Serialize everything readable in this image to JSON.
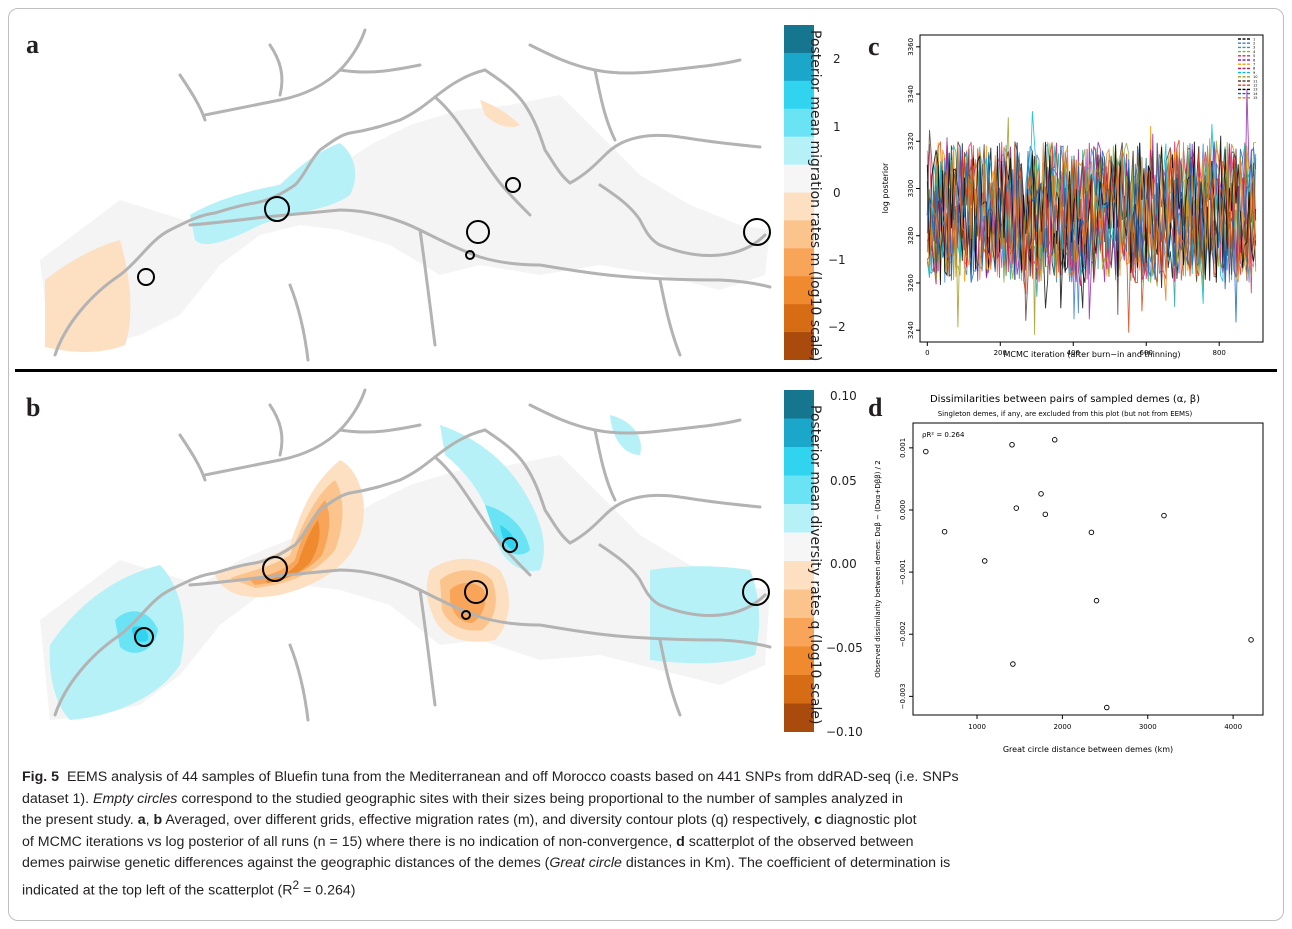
{
  "panels": {
    "a": "a",
    "b": "b",
    "c": "c",
    "d": "d"
  },
  "colorbar_a": {
    "title": "Posterior mean migration rates m (log10 scale)",
    "ticks": [
      "2",
      "1",
      "0",
      "−1",
      "−2"
    ],
    "colors": [
      "#17768f",
      "#1aa7c9",
      "#30d4ee",
      "#6ae4f4",
      "#b6f1f8",
      "#f6f6f6",
      "#fde0c2",
      "#fbc48d",
      "#f8a55a",
      "#ef8a2e",
      "#d66c14",
      "#a84b0c"
    ]
  },
  "colorbar_b": {
    "title": "Posterior mean diversity rates q (log10 scale)",
    "ticks": [
      "0.10",
      "0.05",
      "0.00",
      "−0.05",
      "−0.10"
    ],
    "colors": [
      "#17768f",
      "#1aa7c9",
      "#30d4ee",
      "#6ae4f4",
      "#b6f1f8",
      "#f6f6f6",
      "#fde0c2",
      "#fbc48d",
      "#f8a55a",
      "#ef8a2e",
      "#d66c14",
      "#a84b0c"
    ]
  },
  "trace": {
    "ylabel": "log posterior",
    "xlabel": "MCMC iteration  (after burn−in and thinning)",
    "yticks": [
      "3240",
      "3260",
      "3280",
      "3300",
      "3320",
      "3340",
      "3360"
    ],
    "xticks": [
      "0",
      "200",
      "400",
      "600",
      "800"
    ],
    "legend": [
      "1",
      "2",
      "3",
      "4",
      "5",
      "6",
      "7",
      "8",
      "9",
      "10",
      "11",
      "12",
      "13",
      "14",
      "15"
    ]
  },
  "chart_data": {
    "type": "scatter",
    "title": "Dissimilarities between pairs of sampled demes (α, β)",
    "subtitle": "Singleton demes, if any, are excluded from this plot (but not from EEMS)",
    "annotation": "ρR² = 0.264",
    "xlabel": "Great circle distance between demes (km)",
    "ylabel": "Observed dissimilarity between demes:  Dαβ − (Dαα+Dββ) / 2",
    "xticks": [
      1000,
      2000,
      3000,
      4000
    ],
    "xtick_labels": [
      "1000",
      "2000",
      "3000",
      "4000"
    ],
    "yticks": [
      -0.003,
      -0.002,
      -0.001,
      0.0,
      0.001
    ],
    "ytick_labels": [
      "−0.003",
      "−0.002",
      "−0.001",
      "0.000",
      "0.001"
    ],
    "xlim": [
      250,
      4350
    ],
    "ylim": [
      -0.0033,
      0.0014
    ],
    "x": [
      400,
      620,
      1090,
      1410,
      1420,
      1460,
      1750,
      1800,
      1910,
      2340,
      2400,
      2520,
      3190,
      4210
    ],
    "y": [
      0.00094,
      -0.00035,
      -0.00082,
      0.00105,
      -0.00248,
      3e-05,
      0.00026,
      -7e-05,
      0.00113,
      -0.00036,
      -0.00146,
      -0.00318,
      -9e-05,
      -0.00209
    ],
    "grid": false
  },
  "caption": {
    "fig_label": "Fig. 5",
    "line1": "EEMS analysis of 44 samples of Bluefin tuna from the Mediterranean and off Morocco coasts based on 441 SNPs from ddRAD-seq (i.e. SNPs",
    "line2": "dataset 1).",
    "line2_italic": "Empty circles",
    "line2_rest": "correspond to the studied geographic sites with their sizes being proportional to the number of samples analyzed in",
    "line3a": "the present study.",
    "bold_a": "a",
    "comma": ",",
    "bold_b": "b",
    "line3b": "Averaged, over different grids, effective migration rates (m), and diversity contour plots (q) respectively,",
    "bold_c": "c",
    "line3c": "diagnostic plot",
    "line4a": "of MCMC iterations vs log posterior of all runs (n = 15) where there is no indication of non-convergence,",
    "bold_d": "d",
    "line4b": "scatterplot of the observed between",
    "line5": "demes pairwise genetic differences against the geographic distances of the demes (",
    "line5_italic": "Great circle",
    "line5_rest": "distances in Km). The coefficient of determination is",
    "line6": "indicated at the top left of the scatterplot (R",
    "sup": "2",
    "line6_rest": "= 0.264)"
  }
}
